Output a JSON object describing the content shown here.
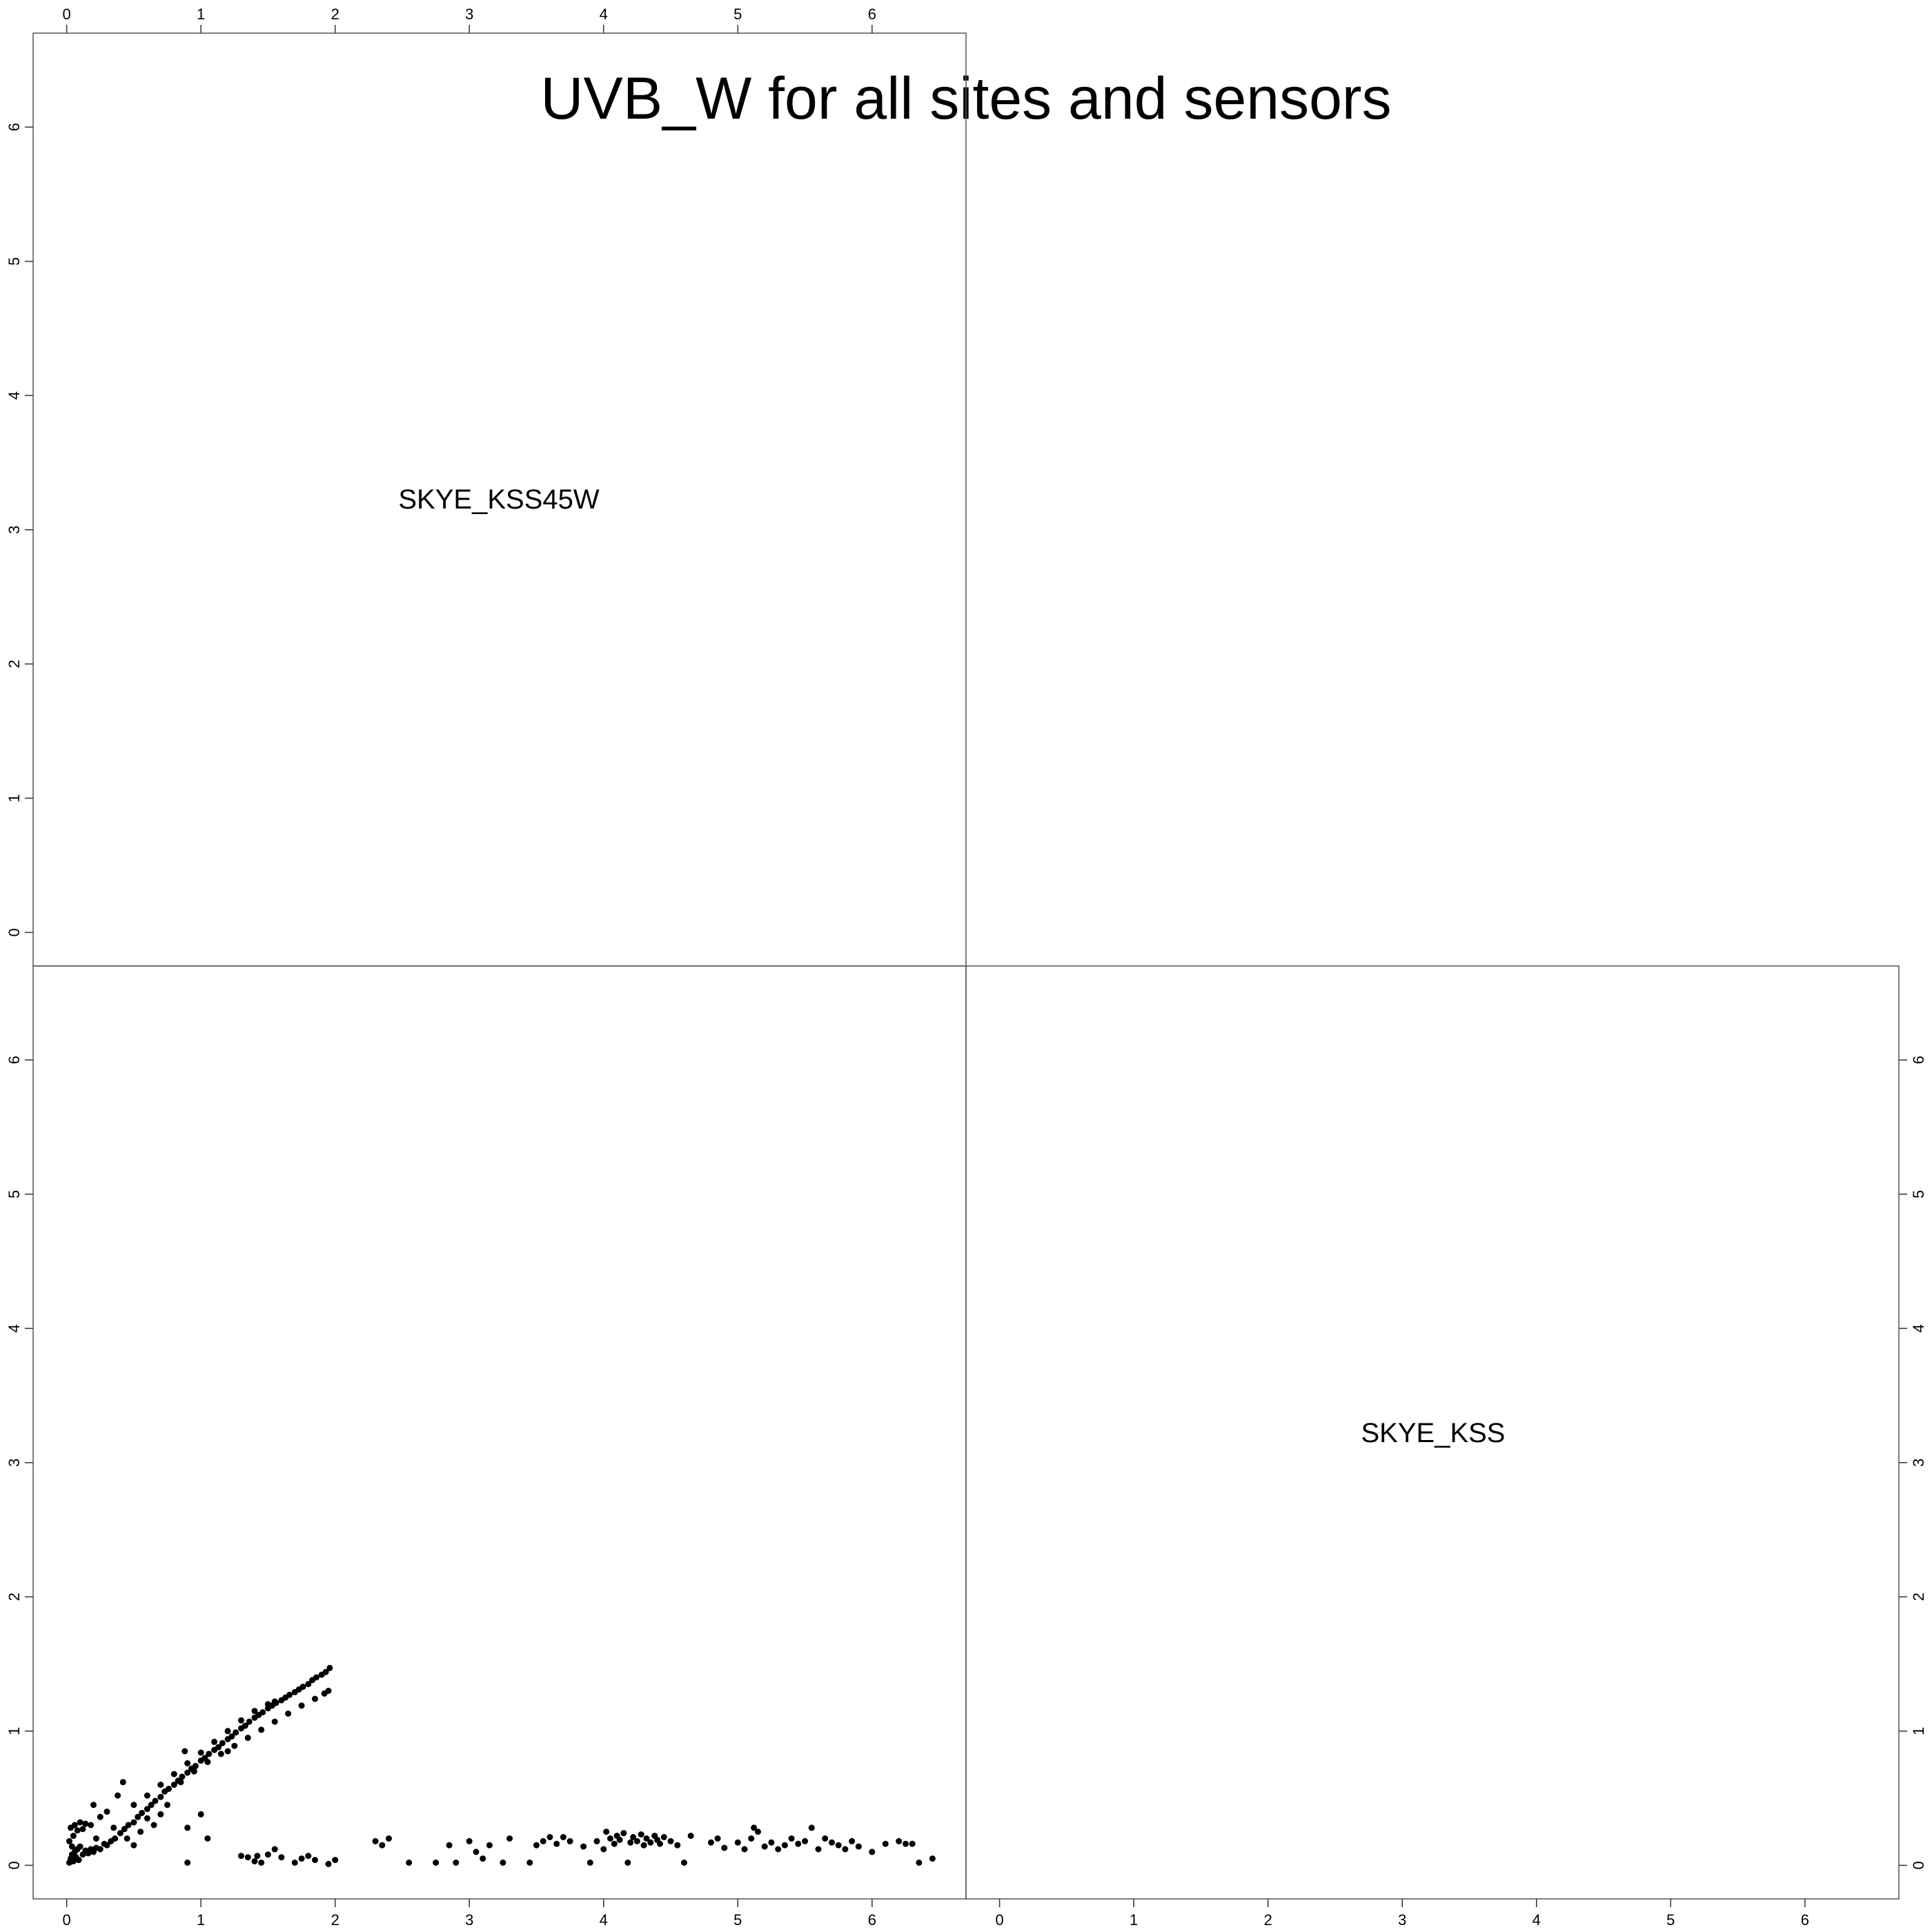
{
  "chart_data": {
    "type": "scatter",
    "subtype": "pairs-matrix",
    "title": "UVB_W for all sites and sensors",
    "variables": [
      "SKYE_KSS45W",
      "SKYE_KSS"
    ],
    "axis_range": [
      -0.25,
      6.7
    ],
    "tick_labels": [
      "0",
      "1",
      "2",
      "3",
      "4",
      "5",
      "6"
    ],
    "tick_values": [
      0,
      1,
      2,
      3,
      4,
      5,
      6
    ],
    "grid": false,
    "legend": "none",
    "point_color": "#000000",
    "scatter_panel": {
      "x_variable": "SKYE_KSS45W",
      "y_variable": "SKYE_KSS",
      "points": [
        [
          0.02,
          0.02
        ],
        [
          0.03,
          0.05
        ],
        [
          0.04,
          0.08
        ],
        [
          0.05,
          0.03
        ],
        [
          0.06,
          0.1
        ],
        [
          0.07,
          0.06
        ],
        [
          0.08,
          0.12
        ],
        [
          0.09,
          0.04
        ],
        [
          0.1,
          0.14
        ],
        [
          0.05,
          0.22
        ],
        [
          0.03,
          0.28
        ],
        [
          0.06,
          0.3
        ],
        [
          0.08,
          0.26
        ],
        [
          0.1,
          0.32
        ],
        [
          0.12,
          0.27
        ],
        [
          0.14,
          0.31
        ],
        [
          0.02,
          0.18
        ],
        [
          0.04,
          0.14
        ],
        [
          0.12,
          0.08
        ],
        [
          0.14,
          0.11
        ],
        [
          0.16,
          0.09
        ],
        [
          0.18,
          0.12
        ],
        [
          0.2,
          0.1
        ],
        [
          0.22,
          0.13
        ],
        [
          0.25,
          0.12
        ],
        [
          0.28,
          0.16
        ],
        [
          0.3,
          0.15
        ],
        [
          0.33,
          0.18
        ],
        [
          0.36,
          0.2
        ],
        [
          0.4,
          0.24
        ],
        [
          0.43,
          0.27
        ],
        [
          0.46,
          0.3
        ],
        [
          0.5,
          0.32
        ],
        [
          0.53,
          0.36
        ],
        [
          0.56,
          0.39
        ],
        [
          0.6,
          0.42
        ],
        [
          0.63,
          0.45
        ],
        [
          0.66,
          0.48
        ],
        [
          0.7,
          0.51
        ],
        [
          0.73,
          0.55
        ],
        [
          0.76,
          0.57
        ],
        [
          0.8,
          0.6
        ],
        [
          0.83,
          0.63
        ],
        [
          0.86,
          0.66
        ],
        [
          0.9,
          0.69
        ],
        [
          0.93,
          0.72
        ],
        [
          0.96,
          0.74
        ],
        [
          1.0,
          0.78
        ],
        [
          1.03,
          0.8
        ],
        [
          1.06,
          0.83
        ],
        [
          1.1,
          0.86
        ],
        [
          1.13,
          0.88
        ],
        [
          1.16,
          0.91
        ],
        [
          1.2,
          0.94
        ],
        [
          1.23,
          0.96
        ],
        [
          1.26,
          0.99
        ],
        [
          1.3,
          1.02
        ],
        [
          1.33,
          1.04
        ],
        [
          1.36,
          1.07
        ],
        [
          1.4,
          1.1
        ],
        [
          1.43,
          1.12
        ],
        [
          1.46,
          1.14
        ],
        [
          1.5,
          1.17
        ],
        [
          1.53,
          1.19
        ],
        [
          1.56,
          1.21
        ],
        [
          1.6,
          1.23
        ],
        [
          1.63,
          1.25
        ],
        [
          1.66,
          1.27
        ],
        [
          1.7,
          1.29
        ],
        [
          1.73,
          1.31
        ],
        [
          1.76,
          1.33
        ],
        [
          1.8,
          1.35
        ],
        [
          1.83,
          1.38
        ],
        [
          1.86,
          1.4
        ],
        [
          1.9,
          1.42
        ],
        [
          1.93,
          1.44
        ],
        [
          1.96,
          1.47
        ],
        [
          0.5,
          0.45
        ],
        [
          0.6,
          0.52
        ],
        [
          0.7,
          0.6
        ],
        [
          0.8,
          0.68
        ],
        [
          0.9,
          0.76
        ],
        [
          1.0,
          0.84
        ],
        [
          1.1,
          0.92
        ],
        [
          1.2,
          1.0
        ],
        [
          1.3,
          1.08
        ],
        [
          1.4,
          1.15
        ],
        [
          1.5,
          1.2
        ],
        [
          1.55,
          1.22
        ],
        [
          1.2,
          0.85
        ],
        [
          1.25,
          0.89
        ],
        [
          1.35,
          0.95
        ],
        [
          1.45,
          1.01
        ],
        [
          1.55,
          1.07
        ],
        [
          1.65,
          1.13
        ],
        [
          1.75,
          1.19
        ],
        [
          1.85,
          1.24
        ],
        [
          1.92,
          1.28
        ],
        [
          1.95,
          1.3
        ],
        [
          0.85,
          0.62
        ],
        [
          0.95,
          0.7
        ],
        [
          1.05,
          0.77
        ],
        [
          1.15,
          0.83
        ],
        [
          0.25,
          0.36
        ],
        [
          0.3,
          0.4
        ],
        [
          0.38,
          0.52
        ],
        [
          0.42,
          0.62
        ],
        [
          0.2,
          0.45
        ],
        [
          0.35,
          0.28
        ],
        [
          0.45,
          0.2
        ],
        [
          0.55,
          0.25
        ],
        [
          0.6,
          0.35
        ],
        [
          0.65,
          0.3
        ],
        [
          0.5,
          0.15
        ],
        [
          0.7,
          0.38
        ],
        [
          0.75,
          0.45
        ],
        [
          0.18,
          0.3
        ],
        [
          0.22,
          0.2
        ],
        [
          0.9,
          0.28
        ],
        [
          1.0,
          0.38
        ],
        [
          0.88,
          0.85
        ],
        [
          0.9,
          0.02
        ],
        [
          1.05,
          0.2
        ],
        [
          1.3,
          0.07
        ],
        [
          1.35,
          0.06
        ],
        [
          1.4,
          0.03
        ],
        [
          1.42,
          0.07
        ],
        [
          1.45,
          0.02
        ],
        [
          1.5,
          0.08
        ],
        [
          1.55,
          0.12
        ],
        [
          1.6,
          0.06
        ],
        [
          1.7,
          0.02
        ],
        [
          1.75,
          0.05
        ],
        [
          1.8,
          0.07
        ],
        [
          1.85,
          0.04
        ],
        [
          1.95,
          0.01
        ],
        [
          2.0,
          0.04
        ],
        [
          2.3,
          0.18
        ],
        [
          2.35,
          0.15
        ],
        [
          2.4,
          0.2
        ],
        [
          2.55,
          0.02
        ],
        [
          2.75,
          0.02
        ],
        [
          2.85,
          0.15
        ],
        [
          2.9,
          0.02
        ],
        [
          3.0,
          0.18
        ],
        [
          3.05,
          0.1
        ],
        [
          3.1,
          0.05
        ],
        [
          3.15,
          0.15
        ],
        [
          3.25,
          0.02
        ],
        [
          3.3,
          0.2
        ],
        [
          3.45,
          0.02
        ],
        [
          3.5,
          0.15
        ],
        [
          3.55,
          0.18
        ],
        [
          3.6,
          0.21
        ],
        [
          3.65,
          0.16
        ],
        [
          3.7,
          0.21
        ],
        [
          3.75,
          0.18
        ],
        [
          3.85,
          0.14
        ],
        [
          3.9,
          0.02
        ],
        [
          3.95,
          0.18
        ],
        [
          4.0,
          0.12
        ],
        [
          4.02,
          0.25
        ],
        [
          4.05,
          0.2
        ],
        [
          4.08,
          0.16
        ],
        [
          4.1,
          0.22
        ],
        [
          4.12,
          0.19
        ],
        [
          4.15,
          0.24
        ],
        [
          4.18,
          0.02
        ],
        [
          4.2,
          0.17
        ],
        [
          4.22,
          0.21
        ],
        [
          4.25,
          0.18
        ],
        [
          4.28,
          0.23
        ],
        [
          4.3,
          0.15
        ],
        [
          4.32,
          0.2
        ],
        [
          4.35,
          0.17
        ],
        [
          4.38,
          0.22
        ],
        [
          4.4,
          0.19
        ],
        [
          4.42,
          0.16
        ],
        [
          4.45,
          0.21
        ],
        [
          4.5,
          0.18
        ],
        [
          4.55,
          0.15
        ],
        [
          4.6,
          0.02
        ],
        [
          4.65,
          0.22
        ],
        [
          4.8,
          0.17
        ],
        [
          4.85,
          0.2
        ],
        [
          4.9,
          0.13
        ],
        [
          5.0,
          0.17
        ],
        [
          5.05,
          0.12
        ],
        [
          5.1,
          0.2
        ],
        [
          5.12,
          0.28
        ],
        [
          5.15,
          0.25
        ],
        [
          5.2,
          0.14
        ],
        [
          5.25,
          0.17
        ],
        [
          5.3,
          0.12
        ],
        [
          5.35,
          0.15
        ],
        [
          5.4,
          0.2
        ],
        [
          5.45,
          0.16
        ],
        [
          5.5,
          0.18
        ],
        [
          5.55,
          0.28
        ],
        [
          5.6,
          0.12
        ],
        [
          5.65,
          0.2
        ],
        [
          5.7,
          0.17
        ],
        [
          5.75,
          0.15
        ],
        [
          5.8,
          0.12
        ],
        [
          5.85,
          0.18
        ],
        [
          5.9,
          0.14
        ],
        [
          6.0,
          0.1
        ],
        [
          6.1,
          0.16
        ],
        [
          6.2,
          0.18
        ],
        [
          6.25,
          0.16
        ],
        [
          6.3,
          0.16
        ],
        [
          6.35,
          0.02
        ],
        [
          6.45,
          0.05
        ]
      ]
    }
  }
}
